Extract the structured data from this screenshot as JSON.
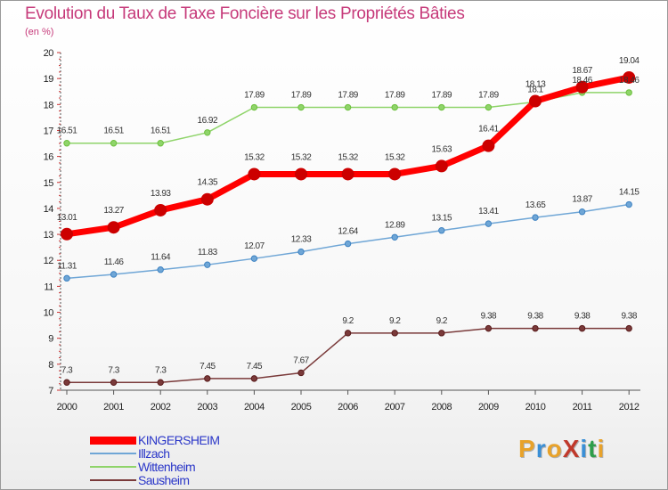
{
  "title": "Evolution du Taux de Taxe Foncière sur les Propriétés Bâties",
  "unit": "(en %)",
  "colors": {
    "title": "#c63a7a",
    "legend_text": "#2a36c8",
    "logo": [
      "#e8a22a",
      "#3a8fd6",
      "#e8a22a",
      "#c0392b",
      "#3a8fd6",
      "#2e9e4a"
    ]
  },
  "logo_text": "ProXiti",
  "chart_data": {
    "type": "line",
    "title": "Evolution du Taux de Taxe Foncière sur les Propriétés Bâties",
    "ylabel": "(en %)",
    "xlabel": "",
    "x": [
      "2000",
      "2001",
      "2002",
      "2003",
      "2004",
      "2005",
      "2006",
      "2007",
      "2008",
      "2009",
      "2010",
      "2011",
      "2012"
    ],
    "ylim": [
      7,
      20
    ],
    "yticks": [
      7,
      8,
      9,
      10,
      11,
      12,
      13,
      14,
      15,
      16,
      17,
      18,
      19,
      20
    ],
    "grid": false,
    "legend_position": "bottom-left",
    "series": [
      {
        "name": "KINGERSHEIM",
        "color": "#ff0000",
        "marker_color": "#cc0000",
        "emphasis": true,
        "values": [
          13.01,
          13.27,
          13.93,
          14.35,
          15.32,
          15.32,
          15.32,
          15.32,
          15.63,
          16.41,
          18.13,
          18.67,
          19.04
        ],
        "labels": [
          "13.01",
          "13.27",
          "13.93",
          "14.35",
          "15.32",
          "15.32",
          "15.32",
          "15.32",
          "15.63",
          "16.41",
          "18.13",
          "18.67",
          "19.04"
        ]
      },
      {
        "name": "Illzach",
        "color": "#6fa6d6",
        "marker_color": "#3d82c2",
        "emphasis": false,
        "values": [
          11.31,
          11.46,
          11.64,
          11.83,
          12.07,
          12.33,
          12.64,
          12.89,
          13.15,
          13.41,
          13.65,
          13.87,
          14.15
        ],
        "labels": [
          "11.31",
          "11.46",
          "11.64",
          "11.83",
          "12.07",
          "12.33",
          "12.64",
          "12.89",
          "13.15",
          "13.41",
          "13.65",
          "13.87",
          "14.15"
        ]
      },
      {
        "name": "Wittenheim",
        "color": "#8fd46a",
        "marker_color": "#6cc03c",
        "emphasis": false,
        "values": [
          16.51,
          16.51,
          16.51,
          16.92,
          17.89,
          17.89,
          17.89,
          17.89,
          17.89,
          17.89,
          18.1,
          18.46,
          18.46
        ],
        "labels": [
          "16.51",
          "16.51",
          "16.51",
          "16.92",
          "17.89",
          "17.89",
          "17.89",
          "17.89",
          "17.89",
          "17.89",
          "18.1",
          "18.46",
          "18.46"
        ]
      },
      {
        "name": "Sausheim",
        "color": "#7a3a3a",
        "marker_color": "#5a1c1c",
        "emphasis": false,
        "values": [
          7.3,
          7.3,
          7.3,
          7.45,
          7.45,
          7.67,
          9.2,
          9.2,
          9.2,
          9.38,
          9.38,
          9.38,
          9.38
        ],
        "labels": [
          "7.3",
          "7.3",
          "7.3",
          "7.45",
          "7.45",
          "7.67",
          "9.2",
          "9.2",
          "9.2",
          "9.38",
          "9.38",
          "9.38",
          "9.38"
        ]
      }
    ]
  }
}
